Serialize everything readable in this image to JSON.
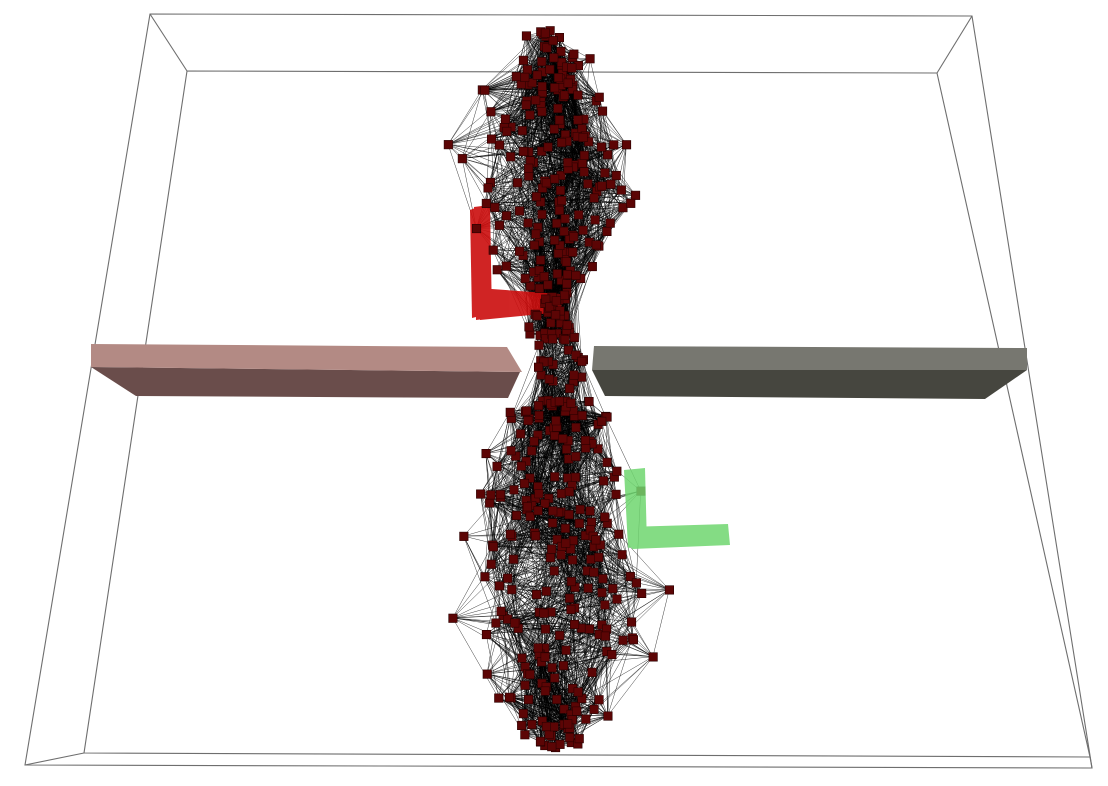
{
  "scene": {
    "background": "#ffffff",
    "box_edge_color": "#6e6e6e",
    "graph_edge_color": "#000000",
    "node_color": "#5c0505",
    "node_border_color": "#2a0000",
    "left_wall_top_color": "#b38a84",
    "left_wall_side_color": "#6a4d4b",
    "right_wall_top_color": "#777770",
    "right_wall_side_color": "#46463f",
    "red_robot_color": "#cc0d0d",
    "green_robot_color": "#6fd66f",
    "upper_cluster_node_count": 230,
    "lower_cluster_node_count": 240
  }
}
